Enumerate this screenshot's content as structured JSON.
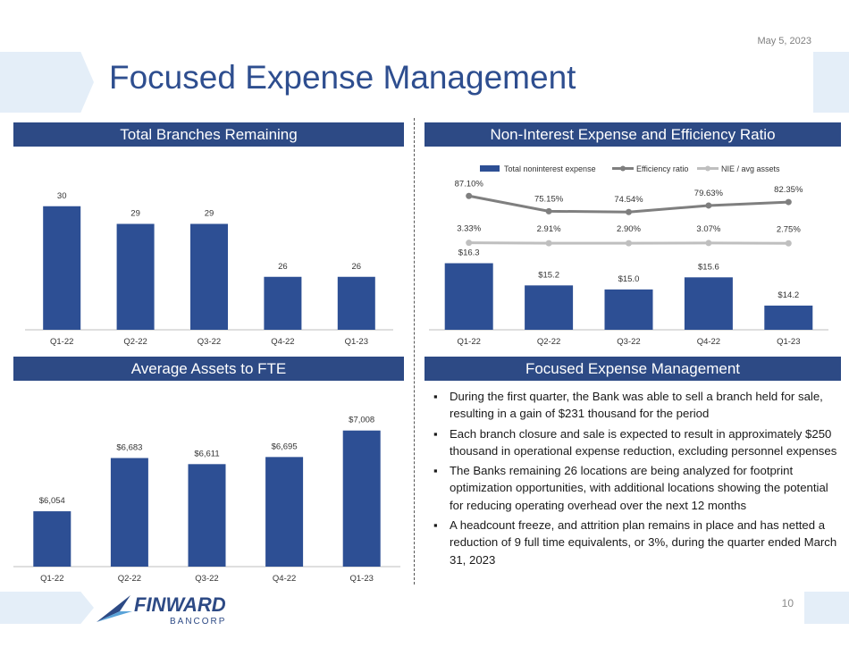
{
  "date": "May 5, 2023",
  "title": "Focused Expense Management",
  "page_number": "10",
  "logo": {
    "name": "FINWARD",
    "sub": "BANCORP"
  },
  "colors": {
    "bar": "#2d4f94",
    "header": "#2d4a85",
    "line": "#7f7f7f",
    "line2": "#bfbfbf",
    "title": "#2e4e8f"
  },
  "headers": {
    "branches": "Total Branches Remaining",
    "nie": "Non-Interest Expense and Efficiency Ratio",
    "assets": "Average Assets to FTE",
    "focused": "Focused Expense Management"
  },
  "bullets": [
    "During the first quarter, the Bank was able to sell a branch held for sale, resulting in a gain of $231 thousand for the period",
    "Each branch closure and sale is expected to result in approximately $250 thousand in operational expense reduction, excluding personnel expenses",
    "The Banks remaining 26 locations are being analyzed for footprint optimization opportunities, with additional locations showing the potential for reducing  operating overhead over the next 12 months",
    "A headcount freeze, and attrition plan remains in place and has netted a reduction of 9 full time equivalents, or 3%, during the quarter ended March 31, 2023"
  ],
  "chart_data": [
    {
      "id": "branches",
      "type": "bar",
      "title": "Total Branches Remaining",
      "categories": [
        "Q1-22",
        "Q2-22",
        "Q3-22",
        "Q4-22",
        "Q1-23"
      ],
      "values": [
        30,
        29,
        29,
        26,
        26
      ],
      "labels": [
        "30",
        "29",
        "29",
        "26",
        "26"
      ],
      "ylim": [
        23,
        31
      ]
    },
    {
      "id": "nie",
      "type": "bar",
      "title": "Non-Interest Expense and Efficiency Ratio",
      "categories": [
        "Q1-22",
        "Q2-22",
        "Q3-22",
        "Q4-22",
        "Q1-23"
      ],
      "series": [
        {
          "name": "Total noninterest expense",
          "type": "bar",
          "values": [
            16.3,
            15.2,
            15.0,
            15.6,
            14.2
          ],
          "labels": [
            "$16.3",
            "$15.2",
            "$15.0",
            "$15.6",
            "$14.2"
          ]
        },
        {
          "name": "Efficiency ratio",
          "type": "line",
          "values": [
            87.1,
            75.15,
            74.54,
            79.63,
            82.35
          ],
          "labels": [
            "87.10%",
            "75.15%",
            "74.54%",
            "79.63%",
            "82.35%"
          ]
        },
        {
          "name": "NIE / avg assets",
          "type": "line",
          "values": [
            3.33,
            2.91,
            2.9,
            3.07,
            2.75
          ],
          "labels": [
            "3.33%",
            "2.91%",
            "2.90%",
            "3.07%",
            "2.75%"
          ]
        }
      ],
      "bar_ylim": [
        13,
        16.5
      ],
      "legend": "top"
    },
    {
      "id": "assets",
      "type": "bar",
      "title": "Average Assets to FTE",
      "categories": [
        "Q1-22",
        "Q2-22",
        "Q3-22",
        "Q4-22",
        "Q1-23"
      ],
      "values": [
        6054,
        6683,
        6611,
        6695,
        7008
      ],
      "labels": [
        "$6,054",
        "$6,683",
        "$6,611",
        "$6,695",
        "$7,008"
      ],
      "ylim": [
        5400,
        7100
      ]
    }
  ]
}
